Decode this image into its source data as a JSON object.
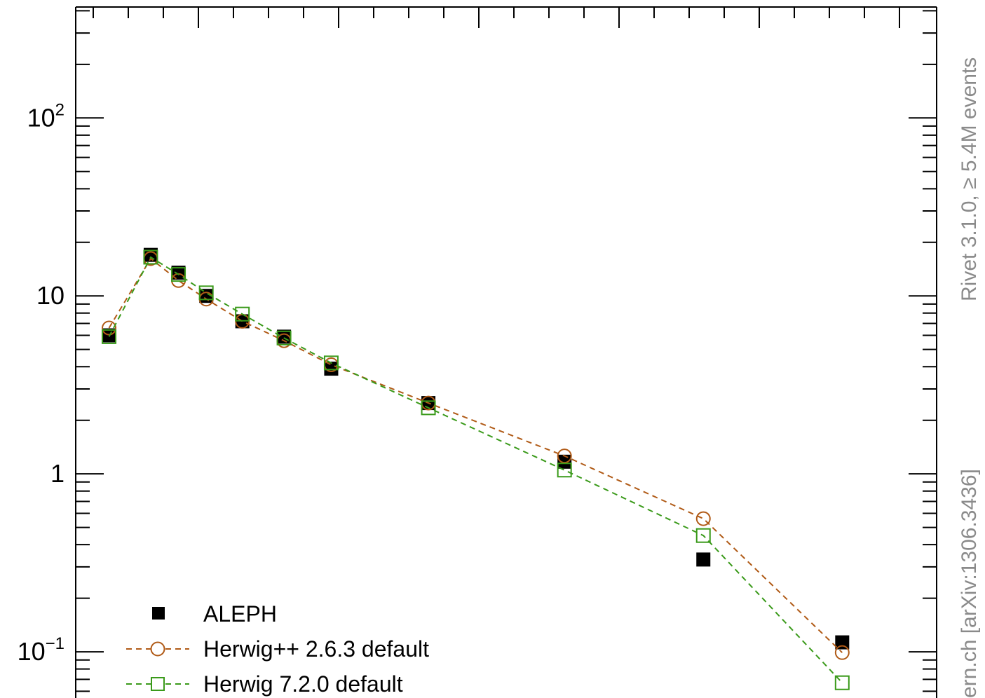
{
  "chart_data": {
    "type": "scatter",
    "title": "",
    "xlabel": "",
    "ylabel": "",
    "yscale": "log",
    "ylim": [
      0.055,
      420
    ],
    "x_index_range": [
      -0.6,
      14.9
    ],
    "ytick_labels": [
      {
        "value": 100,
        "base": "10",
        "exp": "2"
      },
      {
        "value": 10,
        "base": "10",
        "exp": ""
      },
      {
        "value": 1,
        "base": "1",
        "exp": ""
      },
      {
        "value": 0.1,
        "base": "10",
        "exp": "−1"
      }
    ],
    "series": [
      {
        "name": "ALEPH",
        "marker": "filled-square",
        "color": "#000000",
        "points": [
          {
            "x": 0.0,
            "y": 6.0
          },
          {
            "x": 0.75,
            "y": 17.0
          },
          {
            "x": 1.25,
            "y": 13.5
          },
          {
            "x": 1.75,
            "y": 10.0
          },
          {
            "x": 2.4,
            "y": 7.2
          },
          {
            "x": 3.15,
            "y": 5.9
          },
          {
            "x": 4.0,
            "y": 3.9
          },
          {
            "x": 5.75,
            "y": 2.5
          },
          {
            "x": 8.2,
            "y": 1.17
          },
          {
            "x": 10.7,
            "y": 0.33
          },
          {
            "x": 13.2,
            "y": 0.113
          }
        ]
      },
      {
        "name": "Herwig++ 2.6.3 default",
        "marker": "open-circle",
        "color": "#b05a16",
        "points": [
          {
            "x": 0.0,
            "y": 6.6
          },
          {
            "x": 0.75,
            "y": 16.2
          },
          {
            "x": 1.25,
            "y": 12.2
          },
          {
            "x": 1.75,
            "y": 9.6
          },
          {
            "x": 2.4,
            "y": 7.2
          },
          {
            "x": 3.15,
            "y": 5.6
          },
          {
            "x": 4.0,
            "y": 4.1
          },
          {
            "x": 5.75,
            "y": 2.5
          },
          {
            "x": 8.2,
            "y": 1.26
          },
          {
            "x": 10.7,
            "y": 0.56
          },
          {
            "x": 13.2,
            "y": 0.099
          }
        ]
      },
      {
        "name": "Herwig 7.2.0 default",
        "marker": "open-square",
        "color": "#3a9a1a",
        "points": [
          {
            "x": 0.0,
            "y": 5.9
          },
          {
            "x": 0.75,
            "y": 16.5
          },
          {
            "x": 1.25,
            "y": 13.2
          },
          {
            "x": 1.75,
            "y": 10.4
          },
          {
            "x": 2.4,
            "y": 7.9
          },
          {
            "x": 3.15,
            "y": 5.8
          },
          {
            "x": 4.0,
            "y": 4.2
          },
          {
            "x": 5.75,
            "y": 2.35
          },
          {
            "x": 8.2,
            "y": 1.05
          },
          {
            "x": 10.7,
            "y": 0.45
          },
          {
            "x": 13.2,
            "y": 0.067
          }
        ]
      }
    ],
    "legend": {
      "placement": "bottom-left",
      "entries": [
        "ALEPH",
        "Herwig++ 2.6.3 default",
        "Herwig 7.2.0 default"
      ]
    },
    "side_labels": {
      "right_top": "Rivet 3.1.0, ≥ 5.4M events",
      "right_bottom": "ern.ch [arXiv:1306.3436]"
    }
  }
}
